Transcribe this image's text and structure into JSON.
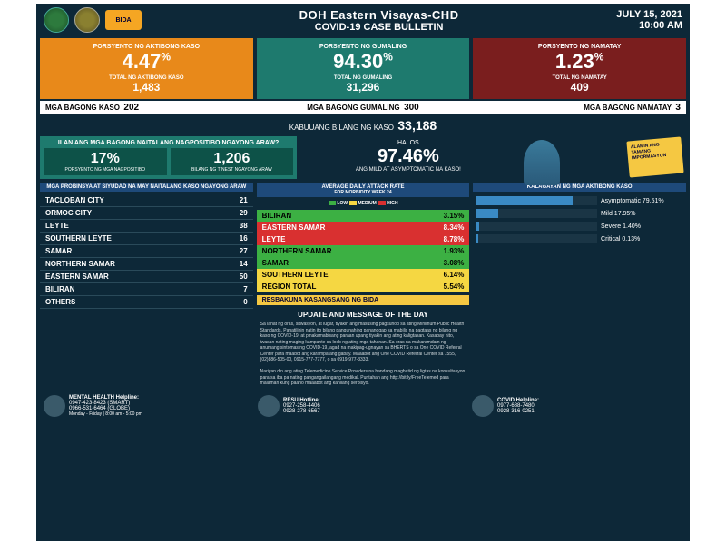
{
  "header": {
    "title": "DOH Eastern Visayas-CHD",
    "subtitle": "COVID-19 CASE BULLETIN",
    "date": "JULY 15, 2021",
    "time": "10:00 AM",
    "bida_label": "BIDA"
  },
  "main_stats": {
    "active": {
      "label": "PORSYENTO NG AKTIBONG KASO",
      "pct": "4.47",
      "sub_label": "TOTAL NG AKTIBONG KASO",
      "total": "1,483"
    },
    "recovered": {
      "label": "PORSYENTO NG GUMALING",
      "pct": "94.30",
      "sub_label": "TOTAL NG GUMALING",
      "total": "31,296"
    },
    "deaths": {
      "label": "PORSYENTO NG NAMATAY",
      "pct": "1.23",
      "sub_label": "TOTAL NG NAMATAY",
      "total": "409"
    }
  },
  "new_stats": {
    "new_cases_label": "MGA BAGONG KASO",
    "new_cases": "202",
    "new_recovered_label": "MGA BAGONG GUMALING",
    "new_recovered": "300",
    "new_deaths_label": "MGA BAGONG NAMATAY",
    "new_deaths": "3"
  },
  "total": {
    "label": "KABUUANG BILANG NG KASO",
    "value": "33,188"
  },
  "positivity": {
    "title": "ILAN ANG MGA BAGONG NAITALANG NAGPOSITIBO NGAYONG ARAW?",
    "pct": "17%",
    "pct_label": "PORSYENTO NG MGA NAGPOSITIBO",
    "tested": "1,206",
    "tested_label": "BILANG NG TINEST NGAYONG ARAW"
  },
  "mild": {
    "halos": "HALOS",
    "pct": "97.46%",
    "sub": "ANG MILD AT ASYMPTOMATIC NA KASO!"
  },
  "nurse_badge": "ALAMIN ANG TAMANG IMPORMASYON",
  "provinces": {
    "header": "MGA PROBINSYA AT SIYUDAD NA MAY NAITALANG KASO NGAYONG ARAW",
    "rows": [
      {
        "name": "TACLOBAN CITY",
        "val": "21"
      },
      {
        "name": "ORMOC CITY",
        "val": "29"
      },
      {
        "name": "LEYTE",
        "val": "38"
      },
      {
        "name": "SOUTHERN LEYTE",
        "val": "16"
      },
      {
        "name": "SAMAR",
        "val": "27"
      },
      {
        "name": "NORTHERN SAMAR",
        "val": "14"
      },
      {
        "name": "EASTERN SAMAR",
        "val": "50"
      },
      {
        "name": "BILIRAN",
        "val": "7"
      },
      {
        "name": "OTHERS",
        "val": "0"
      }
    ]
  },
  "adar": {
    "header": "AVERAGE DAILY ATTACK RATE",
    "sub": "FOR MORBIDITY WEEK 24",
    "legend_low": "LOW",
    "legend_med": "MEDIUM",
    "legend_high": "HIGH",
    "rows": [
      {
        "name": "BILIRAN",
        "val": "3.15%",
        "level": "low"
      },
      {
        "name": "EASTERN SAMAR",
        "val": "8.34%",
        "level": "high"
      },
      {
        "name": "LEYTE",
        "val": "8.78%",
        "level": "high"
      },
      {
        "name": "NORTHERN SAMAR",
        "val": "1.93%",
        "level": "low"
      },
      {
        "name": "SAMAR",
        "val": "3.08%",
        "level": "low"
      },
      {
        "name": "SOUTHERN LEYTE",
        "val": "6.14%",
        "level": "med"
      },
      {
        "name": "REGION TOTAL",
        "val": "5.54%",
        "level": "med"
      }
    ]
  },
  "status": {
    "header": "KALAGAYAN NG MGA AKTIBONG KASO",
    "rows": [
      {
        "name": "Asymptomatic",
        "pct": "79.51%",
        "w": 80
      },
      {
        "name": "Mild",
        "pct": "17.95%",
        "w": 18
      },
      {
        "name": "Severe",
        "pct": "1.40%",
        "w": 2
      },
      {
        "name": "Critical",
        "pct": "0.13%",
        "w": 1
      }
    ]
  },
  "resbakuna": "RESBAKUNA KASANGSANG NG BIDA",
  "message": {
    "header": "UPDATE AND MESSAGE OF THE DAY",
    "body": "Sa lahat ng oras, sitwasyon, at lugar, tiyakin ang masusing pagsunod sa ating Minimum Public Health Standards. Panatilihin natin ito bilang pangunahing pananggap sa mabilis na pagtaas ng bilang ng kaso ng COVID-19, at pinakamabisang paraan upang tiyakin ang ating kaligtasan. Kasabay nito, iwasan nating maging kampante sa loob ng ating mga tahanan. Sa oras na makaramdam ng anumang sintomas ng COVID-19, agad na makipag-ugnayan sa BHERTS o sa One COVID Referral Center para maabot ang karampatang gabay. Maaabot ang One COVID Referral Center sa 1555, (02)886-505-00, 0915-777-7777, o sa 0919-977-3333.",
    "body2": "Nariyan din ang ating Telemedicine Service Providers na handang maghatid ng ligtas na konsultasyon para sa iba pa nating pangangailangang medikal. Puntahan ang http://bit.ly/FreeTelemed para malaman kung paano maaabot ang kanilang serbisyo."
  },
  "hotlines": {
    "mental": {
      "title": "MENTAL HEALTH Helpline:",
      "l1": "0947-423-8423 (SMART)",
      "l2": "0966-531-6464 (GLOBE)",
      "l3": "Monday - Friday | 8:00 am - 5:00 pm"
    },
    "resu": {
      "title": "RESU Hotline:",
      "l1": "0927-258-4406",
      "l2": "0928-278-6567"
    },
    "covid": {
      "title": "COVID Helpline:",
      "l1": "0977-688-7480",
      "l2": "0928-316-0251"
    }
  }
}
